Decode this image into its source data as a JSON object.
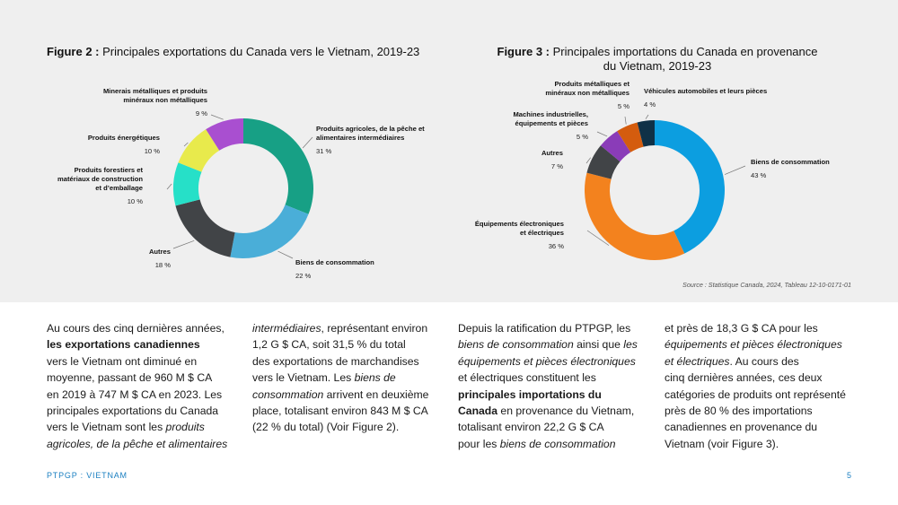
{
  "figure2": {
    "label": "Figure 2 :",
    "title": "Principales exportations du Canada vers le Vietnam, 2019-23",
    "chart_data": {
      "type": "pie",
      "title": "Principales exportations du Canada vers le Vietnam, 2019-23",
      "donut": true,
      "slices": [
        {
          "label": "Produits agricoles, de la pêche et alimentaires intermédiaires",
          "label_lines": [
            "Produits agricoles, de la pêche et",
            "alimentaires intermédiaires"
          ],
          "value": 31,
          "value_label": "31 %",
          "color": "#17a085"
        },
        {
          "label": "Biens de consommation",
          "label_lines": [
            "Biens de consommation"
          ],
          "value": 22,
          "value_label": "22 %",
          "color": "#4aaed8"
        },
        {
          "label": "Autres",
          "label_lines": [
            "Autres"
          ],
          "value": 18,
          "value_label": "18 %",
          "color": "#414447"
        },
        {
          "label": "Produits forestiers et matériaux de construction et d’emballage",
          "label_lines": [
            "Produits forestiers et",
            "matériaux de construction",
            "et d’emballage"
          ],
          "value": 10,
          "value_label": "10 %",
          "color": "#26e0c8"
        },
        {
          "label": "Produits énergétiques",
          "label_lines": [
            "Produits énergétiques"
          ],
          "value": 10,
          "value_label": "10 %",
          "color": "#e8ea4c"
        },
        {
          "label": "Minerais métalliques et produits minéraux non métalliques",
          "label_lines": [
            "Minerais métalliques et produits",
            "minéraux non métalliques"
          ],
          "value": 9,
          "value_label": "9 %",
          "color": "#a94fd0"
        }
      ]
    }
  },
  "figure3": {
    "label": "Figure 3 :",
    "title_line1": "Principales importations du Canada en provenance",
    "title_line2": "du Vietnam, 2019-23",
    "chart_data": {
      "type": "pie",
      "title": "Principales importations du Canada en provenance du Vietnam, 2019-23",
      "donut": true,
      "slices": [
        {
          "label": "Biens de consommation",
          "label_lines": [
            "Biens de consommation"
          ],
          "value": 43,
          "value_label": "43 %",
          "color": "#0c9ee0"
        },
        {
          "label": "Équipements électroniques et électriques",
          "label_lines": [
            "Équipements électroniques",
            "et électriques"
          ],
          "value": 36,
          "value_label": "36 %",
          "color": "#f3821e"
        },
        {
          "label": "Autres",
          "label_lines": [
            "Autres"
          ],
          "value": 7,
          "value_label": "7 %",
          "color": "#414447"
        },
        {
          "label": "Machines industrielles, équipements et pièces",
          "label_lines": [
            "Machines industrielles,",
            "équipements et pièces"
          ],
          "value": 5,
          "value_label": "5 %",
          "color": "#8a3cb8"
        },
        {
          "label": "Produits métalliques et minéraux non métalliques",
          "label_lines": [
            "Produits métalliques et",
            "minéraux non métalliques"
          ],
          "value": 5,
          "value_label": "5 %",
          "color": "#d45c0e"
        },
        {
          "label": "Véhicules automobiles et leurs pièces",
          "label_lines": [
            "Véhicules automobiles et leurs pièces"
          ],
          "value": 4,
          "value_label": "4 %",
          "color": "#0f3147"
        }
      ]
    }
  },
  "source": "Source : Statistique Canada, 2024, Tableau 12-10-0171-01",
  "body": {
    "col1": [
      {
        "t": "Au cours des cinq dernières années,",
        "s": "n"
      },
      {
        "t": "les exportations canadiennes",
        "s": "b"
      },
      {
        "t": "vers le Vietnam ont diminué en",
        "s": "n"
      },
      {
        "t": "moyenne, passant de 960 M $ CA",
        "s": "n"
      },
      {
        "t": "en 2019 à 747 M $ CA en 2023. Les",
        "s": "n"
      },
      {
        "t": "principales exportations du Canada",
        "s": "n"
      },
      {
        "t": "vers le Vietnam sont les ",
        "s": "n"
      },
      {
        "t": "produits",
        "s": "i"
      },
      {
        "t": "agricoles, de la pêche et alimentaires",
        "s": "i"
      }
    ],
    "col2": [
      {
        "t": "intermédiaires",
        "s": "i"
      },
      {
        "t": ", représentant environ",
        "s": "n"
      },
      {
        "t": "1,2 G $ CA, soit 31,5 % du total",
        "s": "n"
      },
      {
        "t": "des exportations de marchandises",
        "s": "n"
      },
      {
        "t": "vers le Vietnam. Les ",
        "s": "n"
      },
      {
        "t": "biens de",
        "s": "i"
      },
      {
        "t": "consommation",
        "s": "i"
      },
      {
        "t": " arrivent en deuxième",
        "s": "n"
      },
      {
        "t": "place, totalisant environ 843 M $ CA",
        "s": "n"
      },
      {
        "t": "(22 % du total) (Voir Figure 2).",
        "s": "n"
      }
    ],
    "col3": [
      {
        "t": "Depuis la ratification du PTPGP, les",
        "s": "n"
      },
      {
        "t": "biens de consommation",
        "s": "i"
      },
      {
        "t": " ainsi que ",
        "s": "n"
      },
      {
        "t": "les",
        "s": "i"
      },
      {
        "t": "équipements et pièces électroniques",
        "s": "i"
      },
      {
        "t": "et électriques constituent les",
        "s": "n"
      },
      {
        "t": "principales importations du",
        "s": "b"
      },
      {
        "t": "Canada",
        "s": "b"
      },
      {
        "t": " en provenance du Vietnam,",
        "s": "n"
      },
      {
        "t": "totalisant environ 22,2 G $ CA",
        "s": "n"
      },
      {
        "t": "pour les ",
        "s": "n"
      },
      {
        "t": "biens de consommation",
        "s": "i"
      }
    ],
    "col4": [
      {
        "t": "et près de 18,3 G $ CA pour les",
        "s": "n"
      },
      {
        "t": "équipements et pièces électroniques",
        "s": "i"
      },
      {
        "t": "et électriques",
        "s": "i"
      },
      {
        "t": ". Au cours des",
        "s": "n"
      },
      {
        "t": "cinq dernières années, ces deux",
        "s": "n"
      },
      {
        "t": "catégories de produits ont représenté",
        "s": "n"
      },
      {
        "t": "près de 80 % des importations",
        "s": "n"
      },
      {
        "t": "canadiennes en provenance du",
        "s": "n"
      },
      {
        "t": "Vietnam (voir Figure 3).",
        "s": "n"
      }
    ]
  },
  "footer": {
    "left": "PTPGP : VIETNAM",
    "page": "5"
  }
}
